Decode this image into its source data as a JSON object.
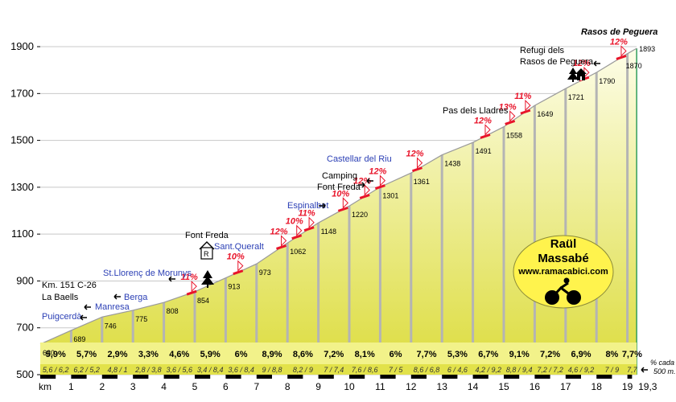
{
  "chart_data": {
    "type": "area",
    "title": "Rasos de Peguera",
    "xlabel": "km",
    "ylabel": "",
    "x_ticks": [
      "1",
      "2",
      "3",
      "4",
      "5",
      "6",
      "7",
      "8",
      "9",
      "10",
      "11",
      "12",
      "13",
      "14",
      "15",
      "16",
      "17",
      "18",
      "19",
      "19,3"
    ],
    "y_ticks": [
      500,
      700,
      900,
      1100,
      1300,
      1500,
      1700,
      1900
    ],
    "xlim": [
      0,
      19.3
    ],
    "ylim": [
      500,
      1900
    ],
    "segment_km": [
      0,
      1,
      2,
      3,
      4,
      5,
      6,
      7,
      8,
      9,
      10,
      11,
      12,
      13,
      14,
      15,
      16,
      17,
      18,
      19,
      19.3
    ],
    "segment_start_alt": [
      630,
      689,
      746,
      775,
      808,
      854,
      913,
      973,
      1062,
      1148,
      1220,
      1301,
      1361,
      1438,
      1491,
      1558,
      1649,
      1721,
      1790,
      1870
    ],
    "final_alt": 1893,
    "point_labels": [
      "630",
      "689",
      "746",
      "775",
      "808",
      "854",
      "913",
      "973",
      "1062",
      "1148",
      "1220",
      "1301",
      "1361",
      "1438",
      "1491",
      "1558",
      "1649",
      "1721",
      "1790",
      "1870",
      "1893"
    ],
    "segment_grades": [
      "5,9%",
      "5,7%",
      "2,9%",
      "3,3%",
      "4,6%",
      "5,9%",
      "6%",
      "8,9%",
      "8,6%",
      "7,2%",
      "8,1%",
      "6%",
      "7,7%",
      "5,3%",
      "6,7%",
      "9,1%",
      "7,2%",
      "6,9%",
      "8%",
      "7,7%"
    ],
    "sub_grades": [
      "5,6 / 6,2",
      "6,2 / 5,2",
      "4,8 / 1",
      "2,8 / 3,8",
      "3,6 / 5,6",
      "3,4 / 8,4",
      "3,6 / 8,4",
      "9 / 8,8",
      "8,2 / 9",
      "7 / 7,4",
      "7,6 / 8,6",
      "7 / 5",
      "8,6 / 6,8",
      "6 / 4,6",
      "4,2 / 9,2",
      "8,8 / 9,4",
      "7,2 / 7,2",
      "4,6 / 9,2",
      "7 / 9",
      "7,7"
    ],
    "steep_pcts": [
      {
        "text": "11%",
        "km": 4.9
      },
      {
        "text": "10%",
        "km": 6.4
      },
      {
        "text": "12%",
        "km": 7.8
      },
      {
        "text": "10%",
        "km": 8.3
      },
      {
        "text": "11%",
        "km": 8.7
      },
      {
        "text": "10%",
        "km": 9.8
      },
      {
        "text": "12%",
        "km": 10.5
      },
      {
        "text": "12%",
        "km": 11.0
      },
      {
        "text": "12%",
        "km": 12.2
      },
      {
        "text": "12%",
        "km": 14.4
      },
      {
        "text": "13%",
        "km": 15.2
      },
      {
        "text": "11%",
        "km": 15.7
      },
      {
        "text": "12%",
        "km": 17.6
      },
      {
        "text": "12%",
        "km": 18.8
      }
    ],
    "places": [
      {
        "text": "Km. 151 C-26",
        "color": "black"
      },
      {
        "text": "La Baells",
        "color": "black"
      },
      {
        "text": "Puigcerdà",
        "color": "blue"
      },
      {
        "text": "Manresa",
        "color": "blue"
      },
      {
        "text": "Berga",
        "color": "blue"
      },
      {
        "text": "St.Llorenç de Morunys",
        "color": "blue"
      },
      {
        "text": "Font Freda",
        "color": "black"
      },
      {
        "text": "Sant.Queralt",
        "color": "blue"
      },
      {
        "text": "Espinalbet",
        "color": "blue"
      },
      {
        "text": "Castellar del Riu",
        "color": "blue"
      },
      {
        "text": "Camping",
        "color": "black"
      },
      {
        "text": "Font Freda",
        "color": "black"
      },
      {
        "text": "Pas dels Lladres",
        "color": "black"
      },
      {
        "text": "Refugi dels",
        "color": "black"
      },
      {
        "text": "Rasos de Peguera",
        "color": "black"
      }
    ],
    "footnote": [
      "% cada",
      "500 m."
    ],
    "colors": {
      "fill_top": "#fdfde8",
      "fill_bottom": "#dcdc3c",
      "steep": "#e8142a",
      "place_blue": "#2b3fb5",
      "badge": "#fff34d"
    }
  },
  "author_badge": {
    "line1": "Raül",
    "line2": "Massabé",
    "site": "www.ramacabici.com"
  }
}
